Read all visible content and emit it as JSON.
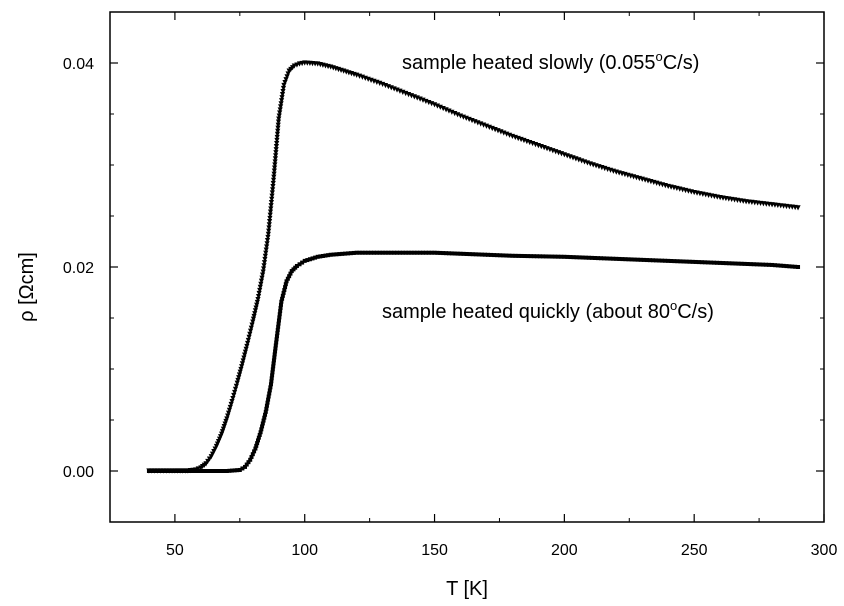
{
  "chart_data": {
    "type": "scatter",
    "xlabel": "T [K]",
    "ylabel": "ρ [Ωcm]",
    "xlim": [
      25,
      300
    ],
    "ylim": [
      -0.005,
      0.045
    ],
    "xticks": [
      50,
      100,
      150,
      200,
      250,
      300
    ],
    "xtick_labels": [
      "50",
      "100",
      "150",
      "200",
      "250",
      "300"
    ],
    "yticks": [
      0.0,
      0.02,
      0.04
    ],
    "ytick_labels": [
      "0.00",
      "0.02",
      "0.04"
    ],
    "grid": false,
    "legend": false,
    "annotations": [
      {
        "text": "sample heated slowly (0.055",
        "sup": "o",
        "suffix": "C/s)"
      },
      {
        "text": "sample heated quickly (about 80",
        "sup": "o",
        "suffix": "C/s)"
      }
    ],
    "series": [
      {
        "marker": "triangle-down",
        "x": [
          40,
          50,
          55,
          58,
          60,
          62,
          64,
          66,
          68,
          70,
          72,
          74,
          76,
          78,
          80,
          82,
          84,
          86,
          88,
          90,
          92,
          94,
          96,
          98,
          100,
          105,
          110,
          115,
          120,
          130,
          140,
          150,
          160,
          170,
          180,
          190,
          200,
          210,
          220,
          230,
          240,
          250,
          260,
          270,
          280,
          290
        ],
        "y": [
          0.0,
          0.0,
          0.0,
          0.0001,
          0.0003,
          0.0007,
          0.0014,
          0.0024,
          0.0036,
          0.0051,
          0.0068,
          0.0086,
          0.0105,
          0.0125,
          0.0146,
          0.0168,
          0.0195,
          0.0232,
          0.0285,
          0.0345,
          0.0378,
          0.0392,
          0.0397,
          0.0399,
          0.04,
          0.0399,
          0.0396,
          0.0392,
          0.0388,
          0.0379,
          0.0369,
          0.0359,
          0.0348,
          0.0338,
          0.0328,
          0.0319,
          0.031,
          0.0301,
          0.0293,
          0.0286,
          0.0279,
          0.0273,
          0.0268,
          0.0264,
          0.0261,
          0.0258
        ]
      },
      {
        "marker": "square",
        "x": [
          40,
          50,
          60,
          70,
          75,
          77,
          79,
          81,
          83,
          85,
          87,
          89,
          91,
          93,
          95,
          97,
          100,
          105,
          110,
          120,
          130,
          140,
          150,
          160,
          180,
          200,
          220,
          240,
          260,
          280,
          290
        ],
        "y": [
          0.0,
          0.0,
          0.0,
          0.0,
          0.0001,
          0.0004,
          0.0011,
          0.0022,
          0.0038,
          0.0058,
          0.0085,
          0.0126,
          0.0166,
          0.0186,
          0.0196,
          0.0201,
          0.0206,
          0.021,
          0.0212,
          0.0214,
          0.0214,
          0.0214,
          0.0214,
          0.0213,
          0.0211,
          0.021,
          0.0208,
          0.0206,
          0.0204,
          0.0202,
          0.02
        ]
      }
    ]
  }
}
